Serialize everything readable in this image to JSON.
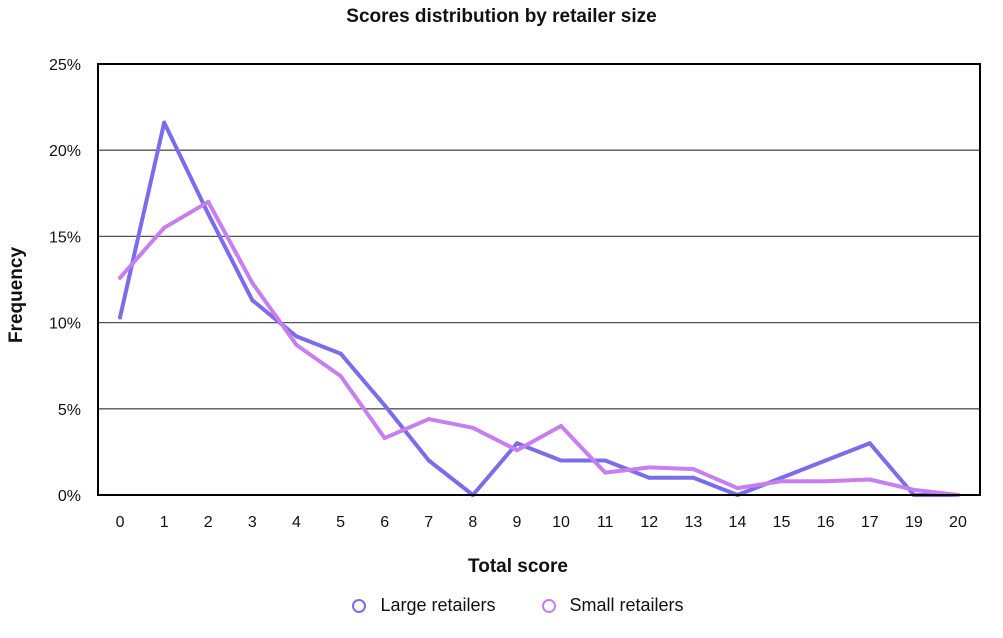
{
  "chart_data": {
    "type": "line",
    "title": "Scores distribution by retailer size",
    "xlabel": "Total score",
    "ylabel": "Frequency",
    "categories": [
      "0",
      "1",
      "2",
      "3",
      "4",
      "5",
      "6",
      "7",
      "8",
      "9",
      "10",
      "11",
      "12",
      "13",
      "14",
      "15",
      "16",
      "17",
      "19",
      "20"
    ],
    "yticks": [
      "0%",
      "5%",
      "10%",
      "15%",
      "20%",
      "25%"
    ],
    "ylim": [
      0,
      25
    ],
    "grid": true,
    "legend_position": "bottom",
    "series": [
      {
        "name": "Large retailers",
        "color": "#7B6CEB",
        "values": [
          10.3,
          21.6,
          16.3,
          11.3,
          9.2,
          8.2,
          5.2,
          2.0,
          0.0,
          3.0,
          2.0,
          2.0,
          1.0,
          1.0,
          0.0,
          1.0,
          2.0,
          3.0,
          0.0,
          0.0
        ]
      },
      {
        "name": "Small retailers",
        "color": "#C97EF0",
        "values": [
          12.6,
          15.5,
          17.0,
          12.3,
          8.7,
          6.9,
          3.3,
          4.4,
          3.9,
          2.6,
          4.0,
          1.3,
          1.6,
          1.5,
          0.4,
          0.8,
          0.8,
          0.9,
          0.3,
          0.0
        ]
      }
    ]
  }
}
